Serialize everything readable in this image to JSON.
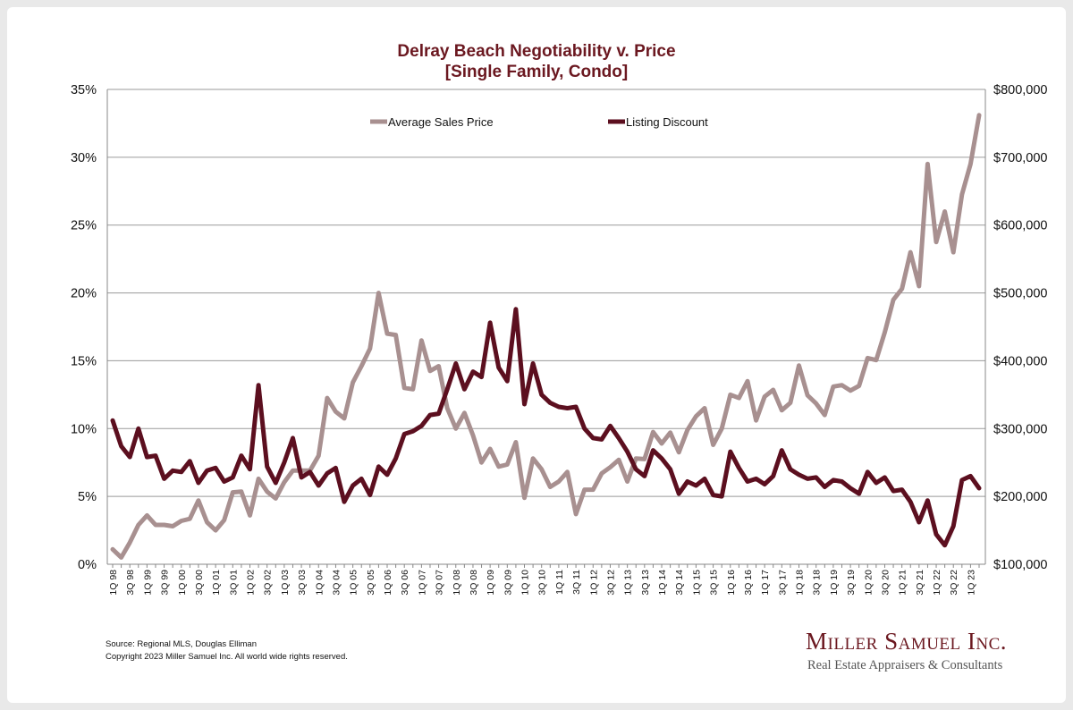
{
  "chart_data": {
    "type": "line",
    "title": "Delray Beach Negotiability v. Price",
    "subtitle": "[Single Family, Condo]",
    "source": "Source: Regional MLS, Douglas Elliman",
    "copyright": "Copyright 2023 Miller Samuel Inc.  All world wide rights reserved.",
    "grid": "horizontal",
    "legend_position": "top-center",
    "y_left_ticks": [
      "0%",
      "5%",
      "10%",
      "15%",
      "20%",
      "25%",
      "30%",
      "35%"
    ],
    "y_right_ticks": [
      "$100,000",
      "$200,000",
      "$300,000",
      "$400,000",
      "$500,000",
      "$600,000",
      "$700,000",
      "$800,000"
    ],
    "y_left_range": [
      0,
      35
    ],
    "y_right_range": [
      100000,
      800000
    ],
    "x_tick_labels": [
      "1Q 98",
      "3Q 98",
      "1Q 99",
      "3Q 99",
      "1Q 00",
      "3Q 00",
      "1Q 01",
      "3Q 01",
      "1Q 02",
      "3Q 02",
      "1Q 03",
      "3Q 03",
      "1Q 04",
      "3Q 04",
      "1Q 05",
      "3Q 05",
      "1Q 06",
      "3Q 06",
      "1Q 07",
      "3Q 07",
      "1Q 08",
      "3Q 08",
      "1Q 09",
      "3Q 09",
      "1Q 10",
      "3Q 10",
      "1Q 11",
      "3Q 11",
      "1Q 12",
      "3Q 12",
      "1Q 13",
      "3Q 13",
      "1Q 14",
      "3Q 14",
      "1Q 15",
      "3Q 15",
      "1Q 16",
      "3Q 16",
      "1Q 17",
      "3Q 17",
      "1Q 18",
      "3Q 18",
      "1Q 19",
      "3Q 19",
      "1Q 20",
      "3Q 20",
      "1Q 21",
      "3Q 21",
      "1Q 22",
      "3Q 22",
      "1Q 23"
    ],
    "x_start": "1Q 98",
    "x_end": "2Q 23",
    "series": [
      {
        "name": "Average Sales Price",
        "axis": "right",
        "color": "#a89090",
        "values": [
          122000,
          110000,
          132000,
          158000,
          172000,
          158000,
          158000,
          156000,
          164000,
          167000,
          194000,
          162000,
          150000,
          165000,
          206000,
          207000,
          172000,
          226000,
          207000,
          197000,
          221000,
          238000,
          238000,
          238000,
          260000,
          345000,
          325000,
          315000,
          368000,
          392000,
          418000,
          500000,
          440000,
          438000,
          360000,
          358000,
          430000,
          385000,
          392000,
          330000,
          300000,
          323000,
          290000,
          250000,
          270000,
          244000,
          247000,
          280000,
          198000,
          256000,
          240000,
          214000,
          222000,
          236000,
          174000,
          210000,
          210000,
          234000,
          243000,
          254000,
          222000,
          256000,
          255000,
          295000,
          278000,
          294000,
          265000,
          298000,
          318000,
          330000,
          276000,
          300000,
          350000,
          345000,
          370000,
          312000,
          347000,
          357000,
          327000,
          338000,
          393000,
          349000,
          337000,
          320000,
          362000,
          364000,
          356000,
          363000,
          404000,
          401000,
          442000,
          490000,
          506000,
          560000,
          510000,
          690000,
          575000,
          620000,
          560000,
          645000,
          690000,
          762000
        ]
      },
      {
        "name": "Listing Discount",
        "axis": "left",
        "color": "#5c0f1f",
        "values": [
          10.6,
          8.7,
          7.9,
          10.0,
          7.9,
          8.0,
          6.3,
          6.9,
          6.8,
          7.6,
          6.0,
          6.9,
          7.1,
          6.1,
          6.4,
          8.0,
          7.0,
          13.2,
          7.2,
          6.0,
          7.5,
          9.3,
          6.4,
          6.8,
          5.8,
          6.7,
          7.1,
          4.6,
          5.8,
          6.3,
          5.1,
          7.2,
          6.6,
          7.8,
          9.6,
          9.8,
          10.2,
          11.0,
          11.1,
          12.9,
          14.8,
          12.9,
          14.2,
          13.8,
          17.8,
          14.5,
          13.5,
          18.8,
          11.8,
          14.8,
          12.5,
          11.9,
          11.6,
          11.5,
          11.6,
          10.0,
          9.3,
          9.2,
          10.2,
          9.3,
          8.3,
          7.0,
          6.5,
          8.4,
          7.8,
          7.0,
          5.2,
          6.1,
          5.8,
          6.3,
          5.1,
          5.0,
          8.3,
          7.1,
          6.1,
          6.3,
          5.9,
          6.5,
          8.4,
          7.0,
          6.6,
          6.3,
          6.4,
          5.7,
          6.2,
          6.1,
          5.6,
          5.2,
          6.8,
          6.0,
          6.4,
          5.4,
          5.5,
          4.6,
          3.1,
          4.7,
          2.2,
          1.4,
          2.8,
          6.2,
          6.5,
          5.6
        ]
      }
    ]
  },
  "brand": {
    "name": "Miller Samuel Inc.",
    "tagline": "Real Estate Appraisers & Consultants"
  }
}
